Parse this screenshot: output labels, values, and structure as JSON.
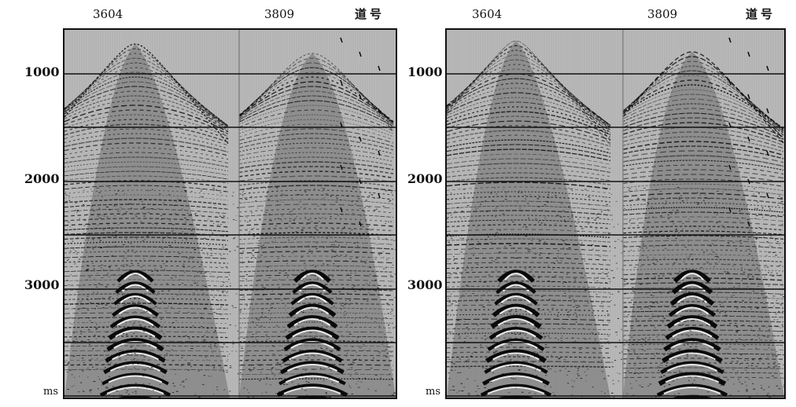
{
  "panels": [
    {
      "id": "left",
      "trace_labels": [
        "3604",
        "3809"
      ],
      "channel_label": "道号",
      "time_ticks": [
        "1000",
        "2000",
        "3000"
      ],
      "time_unit": "ms"
    },
    {
      "id": "right",
      "trace_labels": [
        "3604",
        "3809"
      ],
      "channel_label": "道号",
      "time_ticks": [
        "1000",
        "2000",
        "3000"
      ],
      "time_unit": "ms"
    }
  ],
  "colors": {
    "background": "#b9b9b9",
    "ink": "#0a0a0a",
    "timing_line": "#111111"
  }
}
